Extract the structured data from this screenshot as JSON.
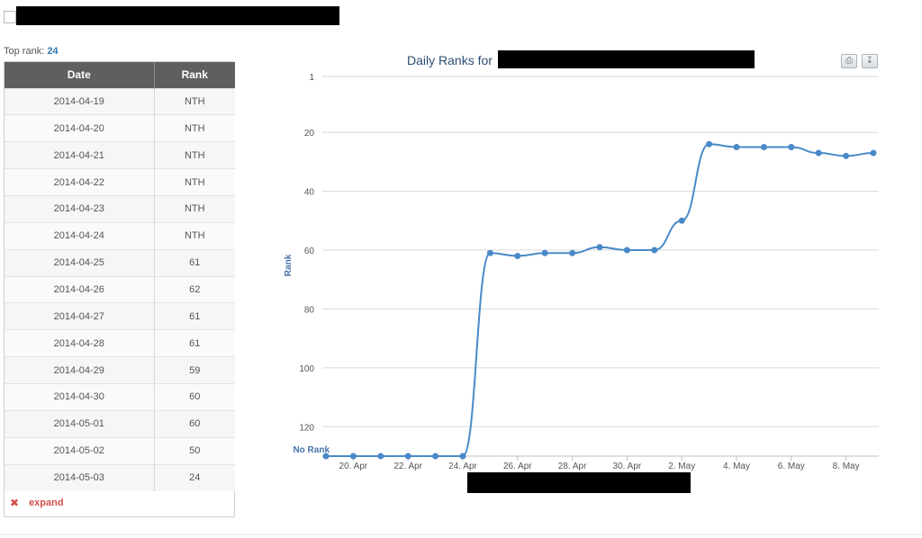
{
  "top_rank": {
    "label": "Top rank:",
    "value": "24"
  },
  "table": {
    "headers": {
      "date": "Date",
      "rank": "Rank"
    },
    "rows": [
      {
        "date": "2014-04-19",
        "rank": "NTH"
      },
      {
        "date": "2014-04-20",
        "rank": "NTH"
      },
      {
        "date": "2014-04-21",
        "rank": "NTH"
      },
      {
        "date": "2014-04-22",
        "rank": "NTH"
      },
      {
        "date": "2014-04-23",
        "rank": "NTH"
      },
      {
        "date": "2014-04-24",
        "rank": "NTH"
      },
      {
        "date": "2014-04-25",
        "rank": "61"
      },
      {
        "date": "2014-04-26",
        "rank": "62"
      },
      {
        "date": "2014-04-27",
        "rank": "61"
      },
      {
        "date": "2014-04-28",
        "rank": "61"
      },
      {
        "date": "2014-04-29",
        "rank": "59"
      },
      {
        "date": "2014-04-30",
        "rank": "60"
      },
      {
        "date": "2014-05-01",
        "rank": "60"
      },
      {
        "date": "2014-05-02",
        "rank": "50"
      },
      {
        "date": "2014-05-03",
        "rank": "24"
      }
    ]
  },
  "expand": {
    "label": "expand"
  },
  "chart_data": {
    "type": "line",
    "title": "Daily Ranks for",
    "ylabel": "Rank",
    "y_reversed": true,
    "ylim": [
      1,
      130
    ],
    "yticks": [
      "1",
      "20",
      "40",
      "60",
      "80",
      "100",
      "120"
    ],
    "ytick_values": [
      1,
      20,
      40,
      60,
      80,
      100,
      120
    ],
    "no_rank_label": "No Rank",
    "no_rank_value": 130,
    "xticks": [
      "20. Apr",
      "22. Apr",
      "24. Apr",
      "26. Apr",
      "28. Apr",
      "30. Apr",
      "2. May",
      "4. May",
      "6. May",
      "8. May"
    ],
    "xtick_dates": [
      "2014-04-20",
      "2014-04-22",
      "2014-04-24",
      "2014-04-26",
      "2014-04-28",
      "2014-04-30",
      "2014-05-02",
      "2014-05-04",
      "2014-05-06",
      "2014-05-08"
    ],
    "grid": true,
    "color": "#4a89c8",
    "series": [
      {
        "x": [
          "2014-04-19",
          "2014-04-20",
          "2014-04-21",
          "2014-04-22",
          "2014-04-23",
          "2014-04-24",
          "2014-04-25",
          "2014-04-26",
          "2014-04-27",
          "2014-04-28",
          "2014-04-29",
          "2014-04-30",
          "2014-05-01",
          "2014-05-02",
          "2014-05-03",
          "2014-05-04",
          "2014-05-05",
          "2014-05-06",
          "2014-05-07",
          "2014-05-08",
          "2014-05-09"
        ],
        "values": [
          130,
          130,
          130,
          130,
          130,
          130,
          61,
          62,
          61,
          61,
          59,
          60,
          60,
          50,
          24,
          25,
          25,
          25,
          27,
          28,
          27
        ]
      }
    ]
  },
  "toolbar": {
    "print_icon": "print-icon",
    "download_icon": "download-icon"
  }
}
